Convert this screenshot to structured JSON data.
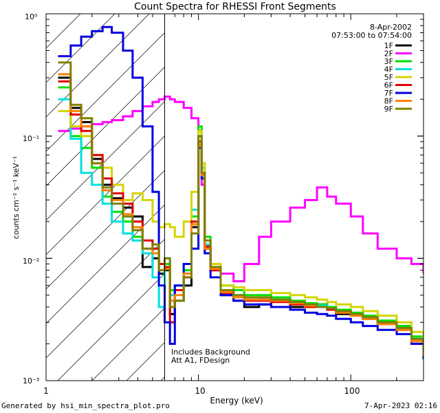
{
  "footer": {
    "generated_by": "Generated by hsi_min_spectra_plot.pro",
    "timestamp": "7-Apr-2023 02:16"
  },
  "chart_data": {
    "type": "line",
    "title": "Count Spectra for RHESSI Front Segments",
    "xlabel": "Energy (keV)",
    "ylabel": "counts cm⁻² s⁻¹ keV⁻¹",
    "xscale": "log",
    "yscale": "log",
    "xlim": [
      1,
      300
    ],
    "ylim": [
      0.001,
      1
    ],
    "x_tick_labels": [
      "1",
      "10",
      "100"
    ],
    "y_tick_labels": [
      "10⁰",
      "10⁻¹",
      "10⁻²",
      "10⁻³"
    ],
    "date": "8-Apr-2002",
    "time_range": "07:53:00 to 07:54:00",
    "attenuator_cutoff_keV": 6,
    "notes": [
      "Includes Background",
      "Att A1, FDesign"
    ],
    "legend_position": "top-right",
    "series": [
      {
        "name": "1F",
        "color": "#000000",
        "x": [
          1.2,
          1.45,
          1.7,
          2.0,
          2.35,
          2.7,
          3.2,
          3.7,
          4.3,
          5.0,
          5.5,
          6.0,
          6.5,
          7.0,
          8.0,
          9.0,
          10.0,
          10.5,
          11.0,
          12.0,
          14.0,
          17.0,
          20.0,
          25.0,
          30.0,
          40.0,
          50.0,
          60.0,
          70.0,
          80.0,
          100.0,
          120.0,
          150.0,
          200.0,
          250.0,
          300.0
        ],
        "values": [
          0.3,
          0.17,
          0.13,
          0.065,
          0.04,
          0.031,
          0.026,
          0.022,
          0.0085,
          0.01,
          0.0075,
          0.008,
          0.0035,
          0.0045,
          0.006,
          0.018,
          0.08,
          0.05,
          0.012,
          0.008,
          0.005,
          0.0045,
          0.004,
          0.0042,
          0.0045,
          0.004,
          0.004,
          0.0042,
          0.0038,
          0.0035,
          0.0035,
          0.0033,
          0.003,
          0.0028,
          0.0022,
          0.0015
        ]
      },
      {
        "name": "2F",
        "color": "#ff00ff",
        "x": [
          1.2,
          1.45,
          1.7,
          2.0,
          2.35,
          2.7,
          3.2,
          3.7,
          4.3,
          5.0,
          5.5,
          6.0,
          6.5,
          7.0,
          8.0,
          9.0,
          10.0,
          10.5,
          11.0,
          12.0,
          14.0,
          17.0,
          20.0,
          25.0,
          30.0,
          40.0,
          50.0,
          60.0,
          70.0,
          80.0,
          100.0,
          120.0,
          150.0,
          200.0,
          250.0,
          300.0
        ],
        "values": [
          0.11,
          0.115,
          0.12,
          0.125,
          0.13,
          0.135,
          0.145,
          0.16,
          0.175,
          0.19,
          0.2,
          0.21,
          0.2,
          0.19,
          0.17,
          0.14,
          0.11,
          0.04,
          0.012,
          0.008,
          0.0075,
          0.0065,
          0.009,
          0.015,
          0.02,
          0.026,
          0.03,
          0.038,
          0.032,
          0.028,
          0.022,
          0.016,
          0.012,
          0.01,
          0.009,
          0.0075
        ]
      },
      {
        "name": "3F",
        "color": "#00e000",
        "x": [
          1.2,
          1.45,
          1.7,
          2.0,
          2.35,
          2.7,
          3.2,
          3.7,
          4.3,
          5.0,
          5.5,
          6.0,
          6.5,
          7.0,
          8.0,
          9.0,
          10.0,
          10.5,
          11.0,
          12.0,
          14.0,
          17.0,
          20.0,
          25.0,
          30.0,
          40.0,
          50.0,
          60.0,
          70.0,
          80.0,
          100.0,
          120.0,
          150.0,
          200.0,
          250.0,
          300.0
        ],
        "values": [
          0.25,
          0.1,
          0.08,
          0.055,
          0.032,
          0.024,
          0.02,
          0.015,
          0.011,
          0.012,
          0.009,
          0.009,
          0.0055,
          0.006,
          0.008,
          0.022,
          0.12,
          0.06,
          0.015,
          0.009,
          0.006,
          0.0055,
          0.005,
          0.005,
          0.0048,
          0.0045,
          0.0043,
          0.0042,
          0.004,
          0.0038,
          0.0036,
          0.0034,
          0.0031,
          0.0028,
          0.0023,
          0.0018
        ]
      },
      {
        "name": "4F",
        "color": "#00e0e0",
        "x": [
          1.2,
          1.45,
          1.7,
          2.0,
          2.35,
          2.7,
          3.2,
          3.7,
          4.3,
          5.0,
          5.5,
          6.0,
          6.5,
          7.0,
          8.0,
          9.0,
          10.0,
          10.5,
          11.0,
          12.0,
          14.0,
          17.0,
          20.0,
          25.0,
          30.0,
          40.0,
          50.0,
          60.0,
          70.0,
          80.0,
          100.0,
          120.0,
          150.0,
          200.0,
          250.0,
          300.0
        ],
        "values": [
          0.2,
          0.095,
          0.05,
          0.04,
          0.028,
          0.02,
          0.016,
          0.014,
          0.011,
          0.007,
          0.004,
          0.01,
          0.005,
          0.006,
          0.009,
          0.025,
          0.1,
          0.055,
          0.013,
          0.0085,
          0.0055,
          0.005,
          0.0048,
          0.0047,
          0.0046,
          0.0044,
          0.0042,
          0.0041,
          0.0039,
          0.0037,
          0.0035,
          0.0033,
          0.003,
          0.0027,
          0.0022,
          0.0017
        ]
      },
      {
        "name": "5F",
        "color": "#d4d400",
        "x": [
          1.2,
          1.45,
          1.7,
          2.0,
          2.35,
          2.7,
          3.2,
          3.7,
          4.3,
          5.0,
          5.5,
          6.0,
          6.5,
          7.0,
          8.0,
          9.0,
          10.0,
          10.5,
          11.0,
          12.0,
          14.0,
          17.0,
          20.0,
          25.0,
          30.0,
          40.0,
          50.0,
          60.0,
          70.0,
          80.0,
          100.0,
          120.0,
          150.0,
          200.0,
          250.0,
          300.0
        ],
        "values": [
          0.16,
          0.12,
          0.1,
          0.07,
          0.055,
          0.04,
          0.03,
          0.034,
          0.03,
          0.02,
          0.018,
          0.019,
          0.018,
          0.015,
          0.02,
          0.035,
          0.11,
          0.06,
          0.014,
          0.009,
          0.006,
          0.0058,
          0.0055,
          0.0055,
          0.0052,
          0.005,
          0.0048,
          0.0046,
          0.0044,
          0.0042,
          0.004,
          0.0037,
          0.0034,
          0.003,
          0.0025,
          0.002
        ]
      },
      {
        "name": "6F",
        "color": "#e00000",
        "x": [
          1.2,
          1.45,
          1.7,
          2.0,
          2.35,
          2.7,
          3.2,
          3.7,
          4.3,
          5.0,
          5.5,
          6.0,
          6.5,
          7.0,
          8.0,
          9.0,
          10.0,
          10.5,
          11.0,
          12.0,
          14.0,
          17.0,
          20.0,
          25.0,
          30.0,
          40.0,
          50.0,
          60.0,
          70.0,
          80.0,
          100.0,
          120.0,
          150.0,
          200.0,
          250.0,
          300.0
        ],
        "values": [
          0.28,
          0.15,
          0.11,
          0.07,
          0.045,
          0.034,
          0.028,
          0.02,
          0.014,
          0.012,
          0.009,
          0.0085,
          0.003,
          0.0055,
          0.007,
          0.02,
          0.09,
          0.05,
          0.0125,
          0.008,
          0.0052,
          0.0048,
          0.0045,
          0.0045,
          0.0044,
          0.0042,
          0.004,
          0.004,
          0.0038,
          0.0036,
          0.0034,
          0.0032,
          0.0029,
          0.0026,
          0.0021,
          0.0016
        ]
      },
      {
        "name": "7F",
        "color": "#0000e0",
        "x": [
          1.2,
          1.45,
          1.7,
          2.0,
          2.35,
          2.7,
          3.2,
          3.7,
          4.3,
          5.0,
          5.5,
          6.0,
          6.5,
          7.0,
          8.0,
          9.0,
          10.0,
          10.5,
          11.0,
          12.0,
          14.0,
          17.0,
          20.0,
          25.0,
          30.0,
          40.0,
          50.0,
          60.0,
          70.0,
          80.0,
          100.0,
          120.0,
          150.0,
          200.0,
          250.0,
          300.0
        ],
        "values": [
          0.45,
          0.55,
          0.65,
          0.72,
          0.78,
          0.7,
          0.5,
          0.3,
          0.12,
          0.035,
          0.006,
          0.003,
          0.002,
          0.006,
          0.009,
          0.012,
          0.08,
          0.045,
          0.011,
          0.007,
          0.005,
          0.0045,
          0.0042,
          0.0042,
          0.004,
          0.0038,
          0.0036,
          0.0035,
          0.0034,
          0.0032,
          0.003,
          0.0028,
          0.0026,
          0.0024,
          0.002,
          0.0015
        ]
      },
      {
        "name": "8F",
        "color": "#ff8000",
        "x": [
          1.2,
          1.45,
          1.7,
          2.0,
          2.35,
          2.7,
          3.2,
          3.7,
          4.3,
          5.0,
          5.5,
          6.0,
          6.5,
          7.0,
          8.0,
          9.0,
          10.0,
          10.5,
          11.0,
          12.0,
          14.0,
          17.0,
          20.0,
          25.0,
          30.0,
          40.0,
          50.0,
          60.0,
          70.0,
          80.0,
          100.0,
          120.0,
          150.0,
          200.0,
          250.0,
          300.0
        ],
        "values": [
          0.32,
          0.16,
          0.12,
          0.06,
          0.036,
          0.03,
          0.023,
          0.018,
          0.012,
          0.011,
          0.008,
          0.0082,
          0.0045,
          0.005,
          0.0075,
          0.019,
          0.085,
          0.048,
          0.012,
          0.0082,
          0.0053,
          0.0048,
          0.0046,
          0.0046,
          0.0045,
          0.0043,
          0.0041,
          0.004,
          0.0039,
          0.0036,
          0.0034,
          0.0032,
          0.0029,
          0.0026,
          0.0021,
          0.0016
        ]
      },
      {
        "name": "9F",
        "color": "#808000",
        "x": [
          1.2,
          1.45,
          1.7,
          2.0,
          2.35,
          2.7,
          3.2,
          3.7,
          4.3,
          5.0,
          5.5,
          6.0,
          6.5,
          7.0,
          8.0,
          9.0,
          10.0,
          10.5,
          11.0,
          12.0,
          14.0,
          17.0,
          20.0,
          25.0,
          30.0,
          40.0,
          50.0,
          60.0,
          70.0,
          80.0,
          100.0,
          120.0,
          150.0,
          200.0,
          250.0,
          300.0
        ],
        "values": [
          0.4,
          0.18,
          0.14,
          0.06,
          0.038,
          0.028,
          0.022,
          0.017,
          0.012,
          0.013,
          0.008,
          0.01,
          0.004,
          0.0045,
          0.007,
          0.016,
          0.1,
          0.05,
          0.014,
          0.0085,
          0.0055,
          0.005,
          0.0048,
          0.0048,
          0.0046,
          0.0044,
          0.0042,
          0.004,
          0.0039,
          0.0037,
          0.0035,
          0.0033,
          0.003,
          0.0027,
          0.0022,
          0.0017
        ]
      }
    ]
  }
}
